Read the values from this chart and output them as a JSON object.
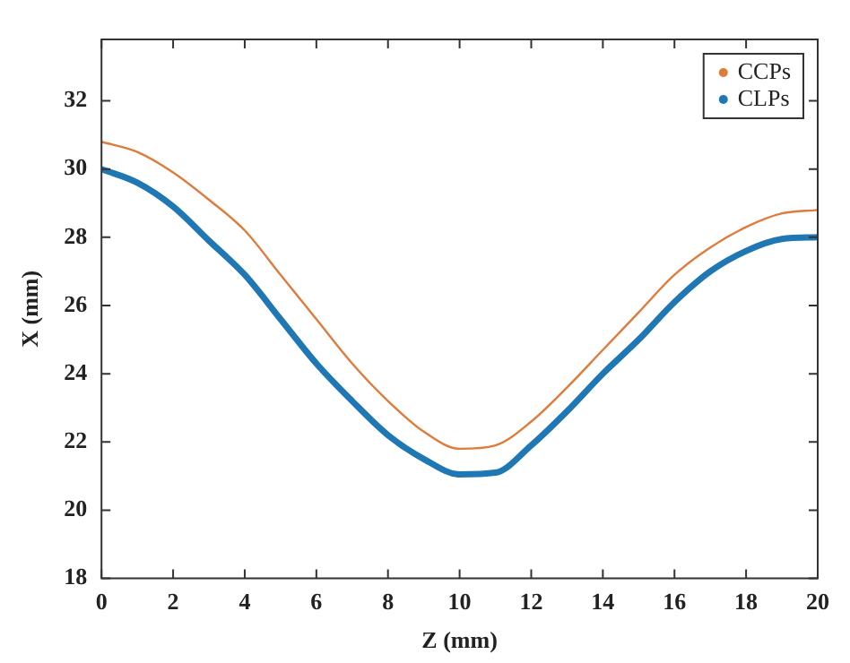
{
  "chart_data": {
    "type": "line",
    "xlabel": "Z (mm)",
    "ylabel": "X (mm)",
    "x": [
      0,
      1,
      2,
      3,
      4,
      5,
      6,
      7,
      8,
      9,
      10,
      11,
      12,
      13,
      14,
      15,
      16,
      17,
      18,
      19,
      20
    ],
    "series": [
      {
        "name": "CCPs",
        "color": "#e07b3c",
        "values": [
          30.8,
          30.5,
          29.9,
          29.1,
          28.2,
          26.9,
          25.6,
          24.3,
          23.2,
          22.3,
          21.8,
          21.9,
          22.6,
          23.6,
          24.7,
          25.8,
          26.9,
          27.7,
          28.3,
          28.7,
          28.8
        ]
      },
      {
        "name": "CLPs",
        "color": "#1f77b4",
        "values": [
          30.0,
          29.6,
          28.9,
          27.9,
          26.9,
          25.6,
          24.3,
          23.2,
          22.2,
          21.5,
          21.05,
          21.1,
          21.9,
          22.9,
          24.0,
          25.0,
          26.1,
          27.0,
          27.6,
          27.95,
          28.0
        ]
      }
    ],
    "xlim": [
      0,
      20
    ],
    "xticks": [
      0,
      2,
      4,
      6,
      8,
      10,
      12,
      14,
      16,
      18,
      20
    ],
    "ylim": [
      18,
      33.8
    ],
    "yticks": [
      18,
      20,
      22,
      24,
      26,
      28,
      30,
      32
    ],
    "grid": false,
    "legend": "top right",
    "marker": "none",
    "line_style": "solid"
  }
}
